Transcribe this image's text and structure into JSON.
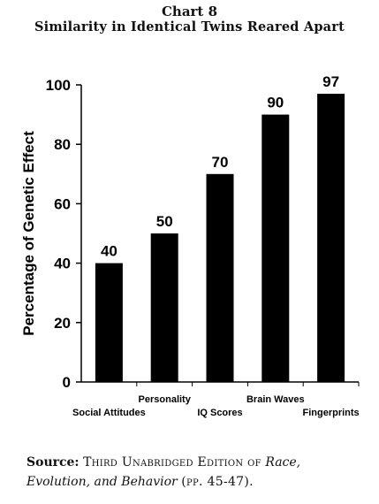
{
  "header": {
    "chart_number": "Chart 8",
    "title": "Similarity in Identical Twins Reared Apart"
  },
  "chart_data": {
    "type": "bar",
    "title": "Similarity in Identical Twins Reared Apart",
    "xlabel": "",
    "ylabel": "Percentage of Genetic Effect",
    "categories": [
      "Social Attitudes",
      "Personality",
      "IQ Scores",
      "Brain Waves",
      "Fingerprints"
    ],
    "values": [
      40,
      50,
      70,
      90,
      97
    ],
    "data_labels": [
      "40",
      "50",
      "70",
      "90",
      "97"
    ],
    "ylim": [
      0,
      100
    ],
    "yticks": [
      0,
      20,
      40,
      60,
      80,
      100
    ],
    "grid": false,
    "legend": "none",
    "bar_color": "#000000"
  },
  "footer": {
    "source_label": "Source:",
    "source_text": "Third Unabridged Edition of",
    "source_title_1": "Race,",
    "source_title_2": "Evolution, and Behavior",
    "source_pages": "(pp. 45-47)."
  }
}
